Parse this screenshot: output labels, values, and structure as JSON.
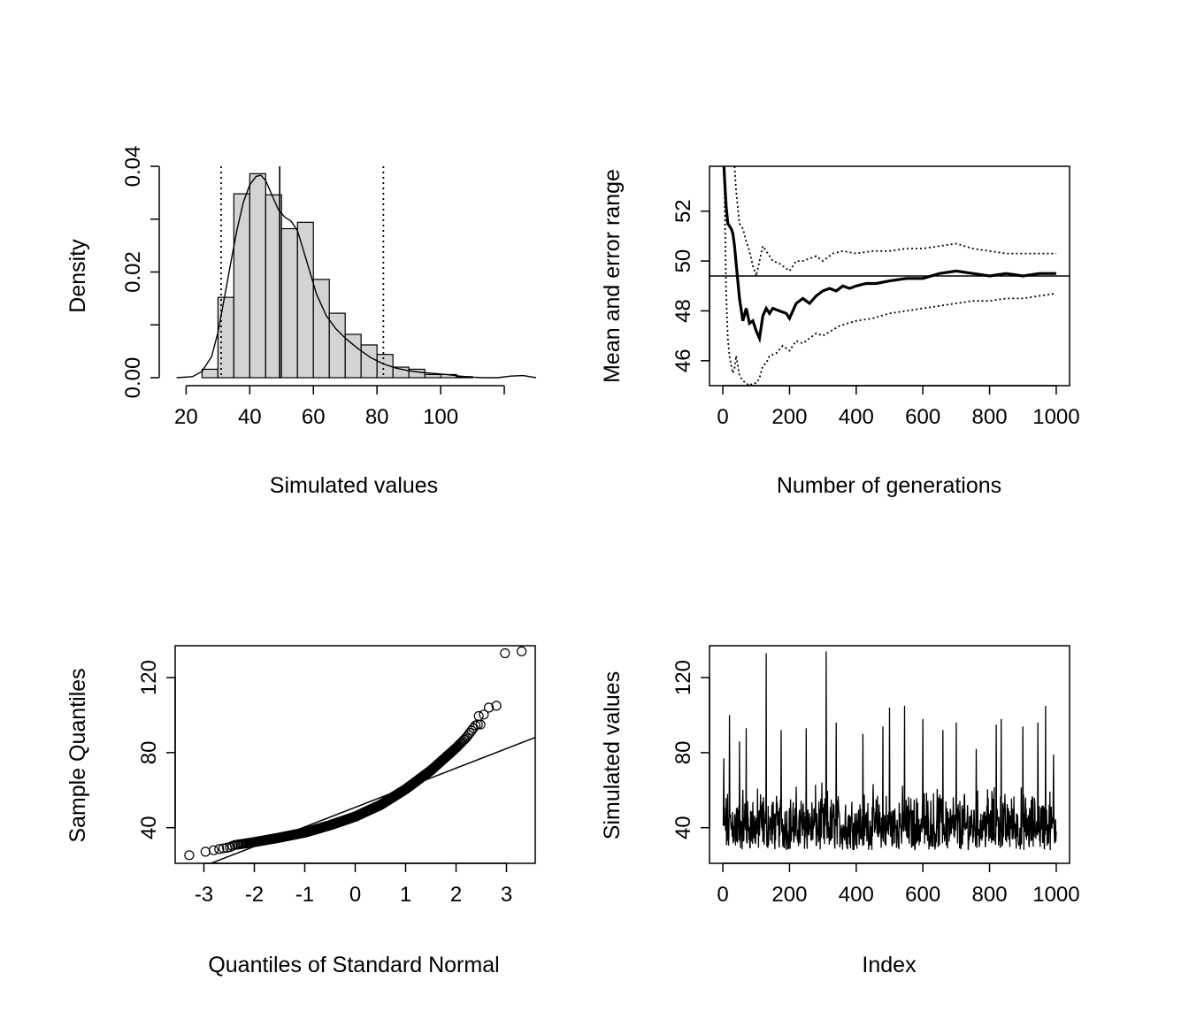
{
  "chart_data": [
    {
      "id": "histogram",
      "type": "bar",
      "xlabel": "Simulated values",
      "ylabel": "Density",
      "xlim": [
        16,
        130
      ],
      "ylim": [
        0,
        0.04
      ],
      "x_ticks": [
        20,
        40,
        60,
        80,
        100,
        120
      ],
      "x_tick_labels": [
        "20",
        "40",
        "60",
        "80",
        "100",
        ""
      ],
      "y_ticks": [
        0.0,
        0.01,
        0.02,
        0.03,
        0.04
      ],
      "y_tick_labels": [
        "0.00",
        "",
        "0.02",
        "",
        "0.04"
      ],
      "bin_edges": [
        25,
        30,
        35,
        40,
        45,
        50,
        55,
        60,
        65,
        70,
        75,
        80,
        85,
        90,
        95,
        100,
        105,
        110,
        115,
        120,
        125,
        130,
        135
      ],
      "densities": [
        0.0016,
        0.0152,
        0.0348,
        0.0386,
        0.0346,
        0.0282,
        0.0294,
        0.0186,
        0.0122,
        0.0082,
        0.0062,
        0.0044,
        0.002,
        0.0016,
        0.0006,
        0.0006,
        0.0002,
        0.0,
        0.0,
        0.0,
        0.0,
        0.0
      ],
      "density_curve": {
        "x": [
          17,
          22,
          25,
          28,
          30,
          32,
          34,
          36,
          38,
          40,
          42,
          43.5,
          45,
          47,
          49,
          51,
          53,
          55,
          58,
          61,
          64,
          67,
          70,
          74,
          78,
          82,
          86,
          90,
          94,
          98,
          102,
          106,
          110,
          114,
          118,
          122,
          126,
          128,
          130
        ],
        "y": [
          0.0,
          0.0002,
          0.0012,
          0.004,
          0.0086,
          0.015,
          0.0216,
          0.028,
          0.0332,
          0.0365,
          0.0381,
          0.0383,
          0.0373,
          0.0345,
          0.0318,
          0.0304,
          0.0296,
          0.0278,
          0.0218,
          0.0158,
          0.0118,
          0.0093,
          0.0075,
          0.0055,
          0.0038,
          0.0026,
          0.0018,
          0.0013,
          0.001,
          0.0008,
          0.0006,
          0.0003,
          0.0001,
          0.0,
          0.0,
          0.0003,
          0.0004,
          0.0002,
          0.0
        ]
      },
      "mean_line": 49.4,
      "quantile_lines": [
        31.0,
        82.0
      ]
    },
    {
      "id": "running-mean",
      "type": "line",
      "xlabel": "Number of generations",
      "ylabel": "Mean and error range",
      "xlim": [
        -40,
        1040
      ],
      "ylim": [
        45,
        53.8
      ],
      "x_ticks": [
        0,
        200,
        400,
        600,
        800,
        1000
      ],
      "x_tick_labels": [
        "0",
        "200",
        "400",
        "600",
        "800",
        "1000"
      ],
      "y_ticks": [
        46,
        48,
        50,
        52
      ],
      "y_tick_labels": [
        "46",
        "48",
        "50",
        "52"
      ],
      "hline": 49.4,
      "mean": {
        "x": [
          1,
          5,
          10,
          15,
          20,
          25,
          30,
          35,
          40,
          50,
          60,
          70,
          80,
          90,
          100,
          110,
          120,
          130,
          140,
          150,
          170,
          190,
          200,
          220,
          240,
          260,
          280,
          300,
          320,
          340,
          360,
          380,
          400,
          430,
          460,
          500,
          550,
          600,
          650,
          700,
          750,
          800,
          850,
          900,
          950,
          1000
        ],
        "y": [
          54.5,
          53.3,
          52.2,
          51.5,
          51.4,
          51.3,
          51.1,
          50.6,
          49.9,
          48.5,
          47.6,
          48.1,
          47.5,
          47.6,
          47.2,
          46.9,
          47.8,
          48.1,
          47.9,
          48.1,
          48.0,
          47.9,
          47.7,
          48.3,
          48.5,
          48.3,
          48.6,
          48.8,
          48.9,
          48.8,
          49.0,
          48.9,
          49.0,
          49.1,
          49.1,
          49.2,
          49.3,
          49.3,
          49.5,
          49.6,
          49.5,
          49.4,
          49.5,
          49.4,
          49.5,
          49.5
        ]
      },
      "upper": {
        "x": [
          35,
          40,
          50,
          60,
          70,
          80,
          90,
          100,
          110,
          120,
          130,
          140,
          150,
          170,
          190,
          200,
          220,
          240,
          260,
          280,
          300,
          330,
          360,
          400,
          450,
          500,
          550,
          600,
          650,
          700,
          750,
          800,
          850,
          900,
          950,
          1000
        ],
        "y": [
          53.8,
          52.8,
          51.5,
          51.3,
          50.8,
          50.4,
          49.8,
          49.4,
          50.0,
          50.6,
          50.4,
          50.2,
          50.0,
          49.9,
          49.7,
          49.6,
          50.0,
          50.0,
          50.1,
          50.2,
          50.0,
          50.3,
          50.4,
          50.3,
          50.4,
          50.4,
          50.5,
          50.5,
          50.6,
          50.7,
          50.5,
          50.4,
          50.3,
          50.3,
          50.3,
          50.3
        ]
      },
      "lower": {
        "x": [
          4,
          10,
          15,
          20,
          25,
          30,
          35,
          40,
          50,
          60,
          70,
          80,
          90,
          100,
          110,
          120,
          130,
          140,
          160,
          180,
          200,
          220,
          240,
          260,
          280,
          300,
          350,
          400,
          450,
          500,
          550,
          600,
          650,
          700,
          750,
          800,
          850,
          900,
          950,
          1000
        ],
        "y": [
          53.8,
          48.7,
          46.9,
          46.2,
          45.8,
          45.5,
          45.7,
          46.2,
          45.4,
          45.2,
          45.1,
          45.0,
          45.1,
          45.1,
          45.3,
          45.8,
          45.9,
          46.2,
          46.3,
          46.6,
          46.4,
          46.8,
          46.7,
          46.9,
          47.1,
          47.0,
          47.4,
          47.6,
          47.7,
          47.9,
          48.0,
          48.1,
          48.2,
          48.3,
          48.4,
          48.4,
          48.5,
          48.5,
          48.6,
          48.7
        ]
      }
    },
    {
      "id": "qq-plot",
      "type": "scatter",
      "xlabel": "Quantiles of Standard Normal",
      "ylabel": "Sample Quantiles",
      "xlim": [
        -3.57,
        3.57
      ],
      "ylim": [
        21,
        137
      ],
      "x_ticks": [
        -3,
        -2,
        -1,
        0,
        1,
        2,
        3
      ],
      "x_tick_labels": [
        "-3",
        "-2",
        "-1",
        "0",
        "1",
        "2",
        "3"
      ],
      "y_ticks": [
        40,
        80,
        120
      ],
      "y_tick_labels": [
        "40",
        "80",
        "120"
      ],
      "quantile_curve": {
        "q": [
          -3.3,
          -3.0,
          -2.8,
          -2.7,
          -2.6,
          -2.5,
          -2.4,
          -2.0,
          -1.5,
          -1.0,
          -0.5,
          0.0,
          0.5,
          1.0,
          1.5,
          2.0,
          2.2,
          2.4
        ],
        "v": [
          25.3,
          27.0,
          28.0,
          28.6,
          29.0,
          29.5,
          30.7,
          32.3,
          34.7,
          37.4,
          41.3,
          45.9,
          52.1,
          60.5,
          70.5,
          82.5,
          88.0,
          95.0
        ]
      },
      "extreme_points": [
        [
          2.45,
          99.5
        ],
        [
          2.55,
          100.3
        ],
        [
          2.65,
          104.0
        ],
        [
          2.8,
          105.0
        ],
        [
          2.97,
          133.0
        ],
        [
          3.3,
          134.0
        ]
      ],
      "reference_line": [
        [
          -3.57,
          13.6
        ],
        [
          3.57,
          88.1
        ]
      ]
    },
    {
      "id": "trace-plot",
      "type": "line",
      "xlabel": "Index",
      "ylabel": "Simulated values",
      "xlim": [
        -40,
        1040
      ],
      "ylim": [
        21,
        137
      ],
      "x_ticks": [
        0,
        200,
        400,
        600,
        800,
        1000
      ],
      "x_tick_labels": [
        "0",
        "200",
        "400",
        "600",
        "800",
        "1000"
      ],
      "y_ticks": [
        40,
        80,
        120
      ],
      "y_tick_labels": [
        "40",
        "80",
        "120"
      ],
      "n": 1000,
      "spikes": [
        [
          3,
          77
        ],
        [
          20,
          100
        ],
        [
          50,
          86
        ],
        [
          70,
          93
        ],
        [
          130,
          133
        ],
        [
          175,
          92
        ],
        [
          250,
          93
        ],
        [
          310,
          134
        ],
        [
          340,
          96
        ],
        [
          420,
          90
        ],
        [
          480,
          94
        ],
        [
          500,
          104
        ],
        [
          545,
          105
        ],
        [
          600,
          98
        ],
        [
          660,
          92
        ],
        [
          700,
          96
        ],
        [
          760,
          82
        ],
        [
          820,
          95
        ],
        [
          835,
          98
        ],
        [
          900,
          94
        ],
        [
          945,
          96
        ],
        [
          968,
          105
        ],
        [
          992,
          79
        ]
      ]
    }
  ]
}
